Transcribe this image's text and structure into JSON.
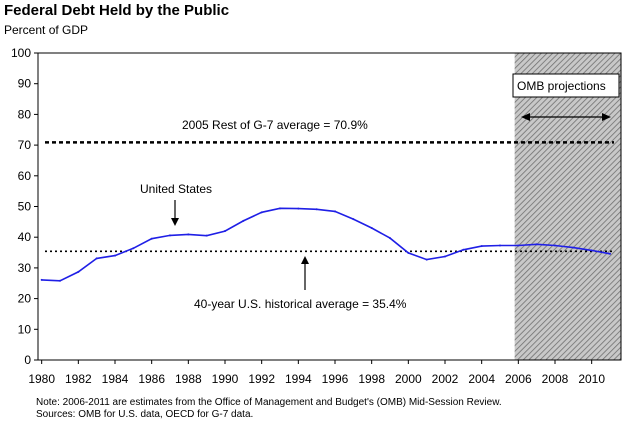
{
  "header": {
    "title": "Federal Debt Held by the Public",
    "subtitle": "Percent of GDP"
  },
  "annotations": {
    "g7_label": "2005 Rest of G-7 average = 70.9%",
    "us_label": "United States",
    "hist_label": "40-year U.S. historical average = 35.4%",
    "projection_label": "OMB projections"
  },
  "notes": {
    "line1": "Note: 2006-2011 are estimates from the Office of Management and Budget's (OMB) Mid-Session Review.",
    "line2": "Sources: OMB for U.S. data, OECD for G-7 data."
  },
  "colors": {
    "series": "#1f1fe6",
    "reference": "#000000",
    "projection_hatch": "#808080"
  },
  "chart_data": {
    "type": "line",
    "title": "Federal Debt Held by the Public",
    "ylabel": "Percent of GDP",
    "xlabel": "",
    "xlim": [
      1979.8,
      2011.6
    ],
    "ylim": [
      0,
      100
    ],
    "yticks": [
      0,
      10,
      20,
      30,
      40,
      50,
      60,
      70,
      80,
      90,
      100
    ],
    "xticks": [
      1980,
      1982,
      1984,
      1986,
      1988,
      1990,
      1992,
      1994,
      1996,
      1998,
      2000,
      2002,
      2004,
      2006,
      2008,
      2010
    ],
    "grid": false,
    "series": [
      {
        "name": "United States",
        "x": [
          1980,
          1981,
          1982,
          1983,
          1984,
          1985,
          1986,
          1987,
          1988,
          1989,
          1990,
          1991,
          1992,
          1993,
          1994,
          1995,
          1996,
          1997,
          1998,
          1999,
          2000,
          2001,
          2002,
          2003,
          2004,
          2005,
          2006,
          2007,
          2008,
          2009,
          2010,
          2011
        ],
        "values": [
          26.1,
          25.8,
          28.7,
          33.1,
          34.0,
          36.4,
          39.5,
          40.6,
          40.9,
          40.5,
          42.0,
          45.3,
          48.1,
          49.4,
          49.3,
          49.1,
          48.4,
          45.9,
          43.0,
          39.7,
          34.9,
          32.7,
          33.7,
          35.9,
          37.1,
          37.3,
          37.3,
          37.7,
          37.3,
          36.6,
          35.7,
          34.6
        ]
      }
    ],
    "reference_lines": [
      {
        "label": "2005 Rest of G-7 average = 70.9%",
        "value": 70.9
      },
      {
        "label": "40-year U.S. historical average = 35.4%",
        "value": 35.4
      }
    ],
    "shaded_region": {
      "label": "OMB projections",
      "x": [
        2005.8,
        2011.6
      ]
    }
  }
}
